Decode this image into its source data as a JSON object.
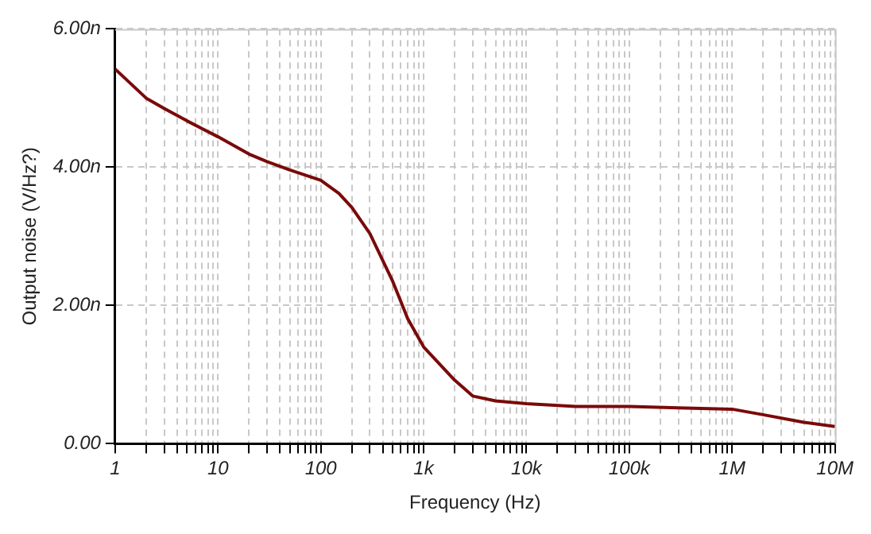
{
  "chart_data": {
    "type": "line",
    "xlabel": "Frequency (Hz)",
    "ylabel": "Output noise (V/Hz?)",
    "log": "x",
    "grid": true,
    "line_style": "solid",
    "marker": "none",
    "x": [
      1,
      2,
      3,
      5,
      10,
      20,
      30,
      50,
      100,
      150,
      200,
      300,
      500,
      700,
      1000,
      2000,
      3000,
      5000,
      10000,
      30000,
      100000,
      300000,
      1000000,
      2000000,
      5000000,
      10000000
    ],
    "series": [
      {
        "color": "#7a0a0a",
        "values": [
          5.42,
          5.0,
          4.85,
          4.67,
          4.44,
          4.19,
          4.08,
          3.96,
          3.81,
          3.62,
          3.42,
          3.04,
          2.35,
          1.81,
          1.4,
          0.92,
          0.69,
          0.62,
          0.58,
          0.54,
          0.54,
          0.52,
          0.5,
          0.42,
          0.31,
          0.25
        ]
      }
    ],
    "xlim": [
      1,
      10000000
    ],
    "xticks": [
      {
        "value": 1,
        "label": "1"
      },
      {
        "value": 2,
        "label": null
      },
      {
        "value": 3,
        "label": null
      },
      {
        "value": 4,
        "label": null
      },
      {
        "value": 5,
        "label": null
      },
      {
        "value": 6,
        "label": null
      },
      {
        "value": 7,
        "label": null
      },
      {
        "value": 8,
        "label": null
      },
      {
        "value": 9,
        "label": null
      },
      {
        "value": 10,
        "label": "10"
      },
      {
        "value": 20,
        "label": null
      },
      {
        "value": 30,
        "label": null
      },
      {
        "value": 40,
        "label": null
      },
      {
        "value": 50,
        "label": null
      },
      {
        "value": 60,
        "label": null
      },
      {
        "value": 70,
        "label": null
      },
      {
        "value": 80,
        "label": null
      },
      {
        "value": 90,
        "label": null
      },
      {
        "value": 100,
        "label": "100"
      },
      {
        "value": 200,
        "label": null
      },
      {
        "value": 300,
        "label": null
      },
      {
        "value": 400,
        "label": null
      },
      {
        "value": 500,
        "label": null
      },
      {
        "value": 600,
        "label": null
      },
      {
        "value": 700,
        "label": null
      },
      {
        "value": 800,
        "label": null
      },
      {
        "value": 900,
        "label": null
      },
      {
        "value": 1000,
        "label": "1k"
      },
      {
        "value": 2000,
        "label": null
      },
      {
        "value": 3000,
        "label": null
      },
      {
        "value": 4000,
        "label": null
      },
      {
        "value": 5000,
        "label": null
      },
      {
        "value": 6000,
        "label": null
      },
      {
        "value": 7000,
        "label": null
      },
      {
        "value": 8000,
        "label": null
      },
      {
        "value": 9000,
        "label": null
      },
      {
        "value": 10000,
        "label": "10k"
      },
      {
        "value": 20000,
        "label": null
      },
      {
        "value": 30000,
        "label": null
      },
      {
        "value": 40000,
        "label": null
      },
      {
        "value": 50000,
        "label": null
      },
      {
        "value": 60000,
        "label": null
      },
      {
        "value": 70000,
        "label": null
      },
      {
        "value": 80000,
        "label": null
      },
      {
        "value": 90000,
        "label": null
      },
      {
        "value": 100000,
        "label": "100k"
      },
      {
        "value": 200000,
        "label": null
      },
      {
        "value": 300000,
        "label": null
      },
      {
        "value": 400000,
        "label": null
      },
      {
        "value": 500000,
        "label": null
      },
      {
        "value": 600000,
        "label": null
      },
      {
        "value": 700000,
        "label": null
      },
      {
        "value": 800000,
        "label": null
      },
      {
        "value": 900000,
        "label": null
      },
      {
        "value": 1000000,
        "label": "1M"
      },
      {
        "value": 2000000,
        "label": null
      },
      {
        "value": 3000000,
        "label": null
      },
      {
        "value": 4000000,
        "label": null
      },
      {
        "value": 5000000,
        "label": null
      },
      {
        "value": 6000000,
        "label": null
      },
      {
        "value": 7000000,
        "label": null
      },
      {
        "value": 8000000,
        "label": null
      },
      {
        "value": 9000000,
        "label": null
      },
      {
        "value": 10000000,
        "label": "10M"
      }
    ],
    "ylim": [
      0,
      6
    ],
    "yticks": [
      {
        "value": 0,
        "label": "0.00"
      },
      {
        "value": 2,
        "label": "2.00n"
      },
      {
        "value": 4,
        "label": "4.00n"
      },
      {
        "value": 6,
        "label": "6.00n"
      }
    ]
  }
}
